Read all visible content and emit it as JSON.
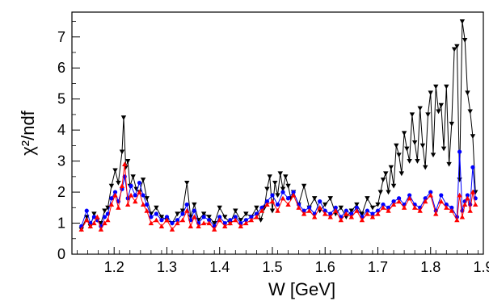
{
  "chart_data": {
    "type": "line",
    "title": "",
    "xlabel": "W [GeV]",
    "ylabel": "χ²/ndf",
    "xlim": [
      1.12,
      1.9
    ],
    "ylim": [
      0,
      7.8
    ],
    "x_ticks": [
      "1.2",
      "1.3",
      "1.4",
      "1.5",
      "1.6",
      "1.7",
      "1.8",
      "1.9"
    ],
    "y_ticks": [
      "0",
      "1",
      "2",
      "3",
      "4",
      "5",
      "6",
      "7"
    ],
    "grid": false,
    "legend": "none",
    "series": [
      {
        "color": "#000000",
        "marker": "triangle-down",
        "x": [
          1.138,
          1.148,
          1.155,
          1.162,
          1.168,
          1.175,
          1.182,
          1.188,
          1.195,
          1.202,
          1.208,
          1.215,
          1.218,
          1.222,
          1.226,
          1.23,
          1.236,
          1.242,
          1.248,
          1.255,
          1.262,
          1.27,
          1.28,
          1.29,
          1.3,
          1.31,
          1.32,
          1.33,
          1.338,
          1.345,
          1.352,
          1.36,
          1.37,
          1.38,
          1.39,
          1.4,
          1.41,
          1.42,
          1.43,
          1.44,
          1.45,
          1.46,
          1.47,
          1.478,
          1.485,
          1.49,
          1.495,
          1.5,
          1.505,
          1.51,
          1.515,
          1.52,
          1.525,
          1.53,
          1.535,
          1.54,
          1.55,
          1.56,
          1.57,
          1.58,
          1.59,
          1.6,
          1.61,
          1.62,
          1.63,
          1.64,
          1.65,
          1.66,
          1.67,
          1.68,
          1.69,
          1.7,
          1.705,
          1.71,
          1.715,
          1.72,
          1.725,
          1.73,
          1.735,
          1.74,
          1.745,
          1.75,
          1.755,
          1.76,
          1.765,
          1.77,
          1.775,
          1.78,
          1.785,
          1.79,
          1.795,
          1.8,
          1.805,
          1.81,
          1.815,
          1.82,
          1.825,
          1.83,
          1.835,
          1.84,
          1.845,
          1.85,
          1.855,
          1.86,
          1.865,
          1.87,
          1.875,
          1.88,
          1.885
        ],
        "y": [
          0.8,
          1.2,
          0.9,
          1.3,
          1.1,
          1.0,
          1.4,
          1.5,
          2.2,
          2.7,
          2.3,
          3.3,
          4.4,
          2.8,
          3.0,
          2.2,
          2.5,
          2.1,
          2.0,
          2.4,
          1.8,
          1.3,
          1.5,
          1.2,
          1.1,
          1.0,
          1.3,
          1.4,
          2.3,
          1.2,
          1.6,
          1.1,
          1.3,
          1.2,
          1.0,
          1.5,
          1.2,
          1.0,
          1.4,
          1.1,
          1.3,
          1.2,
          1.5,
          1.1,
          1.5,
          2.1,
          2.5,
          1.4,
          2.3,
          1.9,
          2.6,
          2.1,
          2.5,
          2.2,
          1.8,
          2.0,
          1.6,
          2.2,
          1.5,
          1.8,
          1.4,
          1.6,
          1.8,
          1.3,
          1.5,
          1.2,
          1.4,
          1.6,
          1.3,
          1.8,
          1.5,
          1.6,
          2.0,
          2.4,
          2.6,
          2.0,
          2.8,
          2.2,
          3.5,
          3.2,
          2.6,
          3.9,
          3.4,
          3.0,
          4.5,
          3.6,
          3.0,
          4.7,
          3.5,
          2.8,
          4.5,
          5.2,
          3.2,
          5.4,
          4.6,
          4.8,
          3.4,
          5.4,
          2.9,
          4.2,
          6.6,
          6.7,
          2.4,
          7.5,
          6.9,
          5.2,
          4.6,
          3.8,
          2.0
        ]
      },
      {
        "color": "#0000ff",
        "marker": "circle",
        "x": [
          1.138,
          1.148,
          1.155,
          1.162,
          1.168,
          1.175,
          1.182,
          1.188,
          1.195,
          1.202,
          1.208,
          1.215,
          1.22,
          1.226,
          1.232,
          1.24,
          1.248,
          1.255,
          1.262,
          1.27,
          1.28,
          1.29,
          1.3,
          1.31,
          1.32,
          1.33,
          1.338,
          1.345,
          1.352,
          1.36,
          1.37,
          1.38,
          1.39,
          1.4,
          1.41,
          1.42,
          1.43,
          1.44,
          1.45,
          1.46,
          1.47,
          1.48,
          1.49,
          1.5,
          1.51,
          1.52,
          1.53,
          1.54,
          1.55,
          1.56,
          1.57,
          1.58,
          1.59,
          1.6,
          1.61,
          1.62,
          1.63,
          1.64,
          1.65,
          1.66,
          1.67,
          1.68,
          1.69,
          1.7,
          1.71,
          1.72,
          1.73,
          1.74,
          1.75,
          1.76,
          1.77,
          1.78,
          1.79,
          1.8,
          1.81,
          1.82,
          1.83,
          1.84,
          1.85,
          1.855,
          1.86,
          1.865,
          1.87,
          1.875,
          1.88,
          1.885
        ],
        "y": [
          0.9,
          1.4,
          1.0,
          1.2,
          1.1,
          0.9,
          1.2,
          1.3,
          1.8,
          2.0,
          1.7,
          2.1,
          2.5,
          1.8,
          2.2,
          1.9,
          2.3,
          1.9,
          1.6,
          1.2,
          1.3,
          1.1,
          1.2,
          1.0,
          1.1,
          1.3,
          1.6,
          1.1,
          1.4,
          1.0,
          1.2,
          1.1,
          0.9,
          1.2,
          1.0,
          1.1,
          1.2,
          1.0,
          1.1,
          1.2,
          1.3,
          1.5,
          1.7,
          1.9,
          1.6,
          2.0,
          1.8,
          2.0,
          1.6,
          1.4,
          1.5,
          1.3,
          1.7,
          1.4,
          1.3,
          1.5,
          1.2,
          1.4,
          1.3,
          1.5,
          1.2,
          1.4,
          1.3,
          1.4,
          1.6,
          1.5,
          1.7,
          1.8,
          1.6,
          1.9,
          1.6,
          1.5,
          1.8,
          2.0,
          1.4,
          1.9,
          1.6,
          1.5,
          1.2,
          3.3,
          1.4,
          1.7,
          1.9,
          1.6,
          2.8,
          1.8
        ]
      },
      {
        "color": "#ff0000",
        "marker": "triangle-up",
        "x": [
          1.138,
          1.148,
          1.155,
          1.162,
          1.168,
          1.175,
          1.182,
          1.188,
          1.195,
          1.202,
          1.208,
          1.215,
          1.22,
          1.226,
          1.232,
          1.24,
          1.248,
          1.255,
          1.262,
          1.27,
          1.28,
          1.29,
          1.3,
          1.31,
          1.32,
          1.33,
          1.338,
          1.345,
          1.352,
          1.36,
          1.37,
          1.38,
          1.39,
          1.4,
          1.41,
          1.42,
          1.43,
          1.44,
          1.45,
          1.46,
          1.47,
          1.48,
          1.49,
          1.5,
          1.51,
          1.52,
          1.53,
          1.54,
          1.55,
          1.56,
          1.57,
          1.58,
          1.59,
          1.6,
          1.61,
          1.62,
          1.63,
          1.64,
          1.65,
          1.66,
          1.67,
          1.68,
          1.69,
          1.7,
          1.71,
          1.72,
          1.73,
          1.74,
          1.75,
          1.76,
          1.77,
          1.78,
          1.79,
          1.8,
          1.81,
          1.82,
          1.83,
          1.84,
          1.85,
          1.855,
          1.86,
          1.865,
          1.87,
          1.875,
          1.88,
          1.885
        ],
        "y": [
          0.8,
          1.1,
          0.9,
          1.0,
          1.2,
          0.8,
          1.0,
          1.1,
          1.6,
          1.9,
          1.5,
          2.2,
          2.9,
          1.6,
          1.9,
          1.7,
          2.0,
          1.6,
          1.4,
          1.0,
          1.1,
          0.9,
          1.1,
          0.8,
          1.0,
          1.1,
          1.4,
          0.9,
          1.2,
          0.9,
          1.0,
          1.0,
          0.8,
          1.1,
          0.9,
          1.0,
          1.1,
          0.9,
          1.0,
          1.1,
          1.2,
          1.4,
          1.6,
          1.7,
          1.4,
          1.8,
          1.6,
          1.9,
          1.5,
          1.3,
          1.4,
          1.2,
          1.5,
          1.3,
          1.2,
          1.4,
          1.1,
          1.3,
          1.2,
          1.4,
          1.1,
          1.3,
          1.2,
          1.3,
          1.5,
          1.4,
          1.6,
          1.7,
          1.5,
          1.8,
          1.5,
          1.4,
          1.7,
          1.9,
          1.3,
          1.7,
          1.5,
          1.4,
          1.1,
          1.9,
          1.2,
          1.6,
          1.8,
          1.4,
          2.0,
          1.6
        ]
      }
    ]
  }
}
